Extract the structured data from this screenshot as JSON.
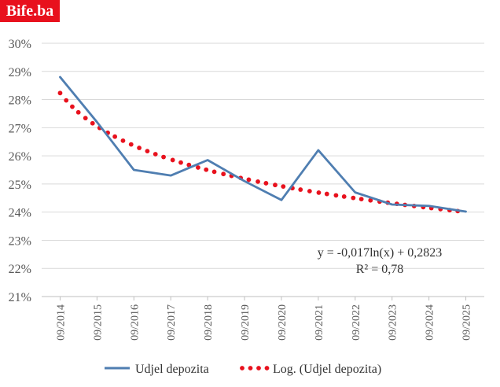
{
  "logo": "Bife.ba",
  "chart_data": {
    "type": "line",
    "title": "",
    "xlabel": "",
    "ylabel": "",
    "categories": [
      "09/2014",
      "09/2015",
      "09/2016",
      "09/2017",
      "09/2018",
      "09/2019",
      "09/2020",
      "09/2021",
      "09/2022",
      "09/2023",
      "09/2024",
      "09/2025"
    ],
    "ylim": [
      0.21,
      0.3
    ],
    "yticks": [
      "21%",
      "22%",
      "23%",
      "24%",
      "25%",
      "26%",
      "27%",
      "28%",
      "29%",
      "30%"
    ],
    "grid": true,
    "series": [
      {
        "name": "Udjel depozita",
        "style": "solid",
        "color": "#4f7eb1",
        "values": [
          0.288,
          0.272,
          0.255,
          0.253,
          0.2585,
          0.251,
          0.2443,
          0.262,
          0.247,
          0.2427,
          0.2422,
          0.2402
        ]
      },
      {
        "name": "Log. (Udjel depozita)",
        "style": "dotted",
        "color": "#e8111d",
        "trendline": "log"
      }
    ],
    "trendline": {
      "a": -0.017,
      "b": 0.2823
    },
    "annotations": [
      "y = -0,017ln(x)  + 0,2823",
      "R² = 0,78"
    ],
    "legend_position": "bottom"
  }
}
